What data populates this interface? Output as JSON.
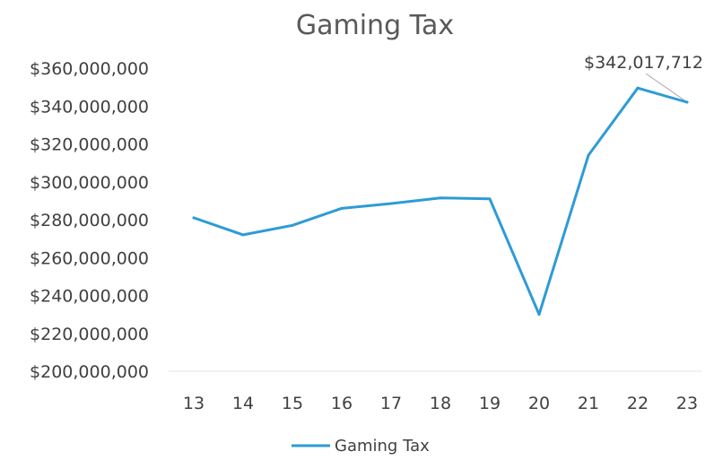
{
  "chart_data": {
    "type": "line",
    "title": "Gaming Tax",
    "xlabel": "",
    "ylabel": "",
    "categories": [
      "13",
      "14",
      "15",
      "16",
      "17",
      "18",
      "19",
      "20",
      "21",
      "22",
      "23"
    ],
    "series": [
      {
        "name": "Gaming Tax",
        "color": "#2E9BD6",
        "values": [
          281000000,
          272000000,
          277000000,
          286000000,
          288500000,
          291500000,
          291000000,
          230000000,
          314000000,
          349500000,
          342017712
        ]
      }
    ],
    "ylim": [
      200000000,
      360000000
    ],
    "yticks": [
      360000000,
      340000000,
      320000000,
      300000000,
      280000000,
      260000000,
      240000000,
      220000000,
      200000000
    ],
    "ytick_labels": [
      "$360,000,000",
      "$340,000,000",
      "$320,000,000",
      "$300,000,000",
      "$280,000,000",
      "$260,000,000",
      "$240,000,000",
      "$220,000,000",
      "$200,000,000"
    ],
    "annotations": [
      {
        "text": "$342,017,712",
        "category": "23"
      }
    ],
    "legend_position": "bottom",
    "grid": false
  }
}
